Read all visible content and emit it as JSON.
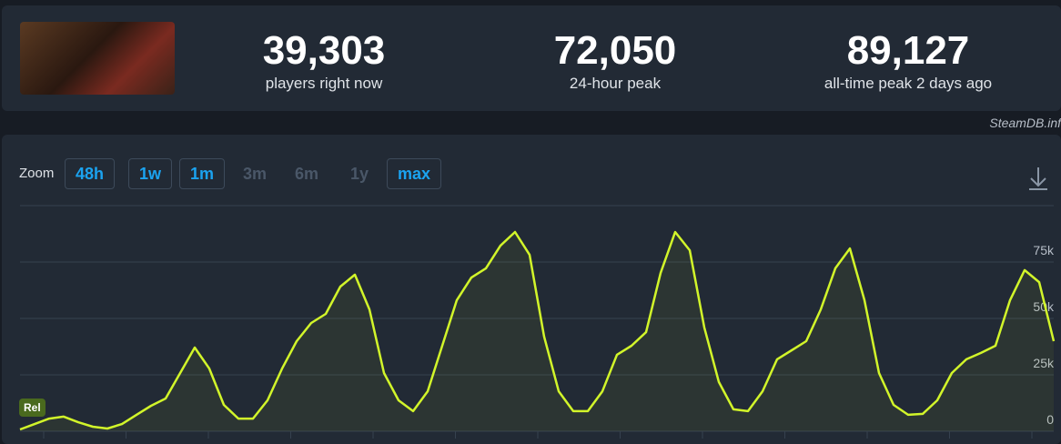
{
  "header": {
    "stats": [
      {
        "value": "39,303",
        "label": "players right now"
      },
      {
        "value": "72,050",
        "label": "24-hour peak"
      },
      {
        "value": "89,127",
        "label": "all-time peak 2 days ago"
      }
    ],
    "source": "SteamDB.inf"
  },
  "zoom": {
    "label": "Zoom",
    "buttons": [
      "48h",
      "1w",
      "1m",
      "3m",
      "6m",
      "1y",
      "max"
    ]
  },
  "chart_data": {
    "type": "line",
    "badge": "Rel",
    "series": [
      {
        "color": "#d2f52a",
        "values": [
          800,
          3200,
          5600,
          6500,
          4000,
          2000,
          1200,
          3200,
          7300,
          11300,
          14500,
          25800,
          37100,
          27800,
          11700,
          5600,
          5600,
          13700,
          27800,
          39900,
          48000,
          52000,
          64100,
          69400,
          54000,
          25800,
          13700,
          8900,
          17700,
          37900,
          58100,
          68100,
          72200,
          82300,
          88300,
          78200,
          41900,
          17700,
          8900,
          8900,
          17700,
          33900,
          37900,
          43900,
          70200,
          88300,
          80200,
          46000,
          21800,
          9700,
          8900,
          17700,
          31900,
          35900,
          39900,
          54000,
          72200,
          81000,
          58100,
          25800,
          11700,
          7300,
          7700,
          13700,
          25800,
          31900,
          34700,
          37900,
          58100,
          71400,
          66100,
          39900
        ]
      }
    ],
    "ylim": [
      0,
      100000
    ],
    "yticks": [
      0,
      {
        "value": 25000,
        "label": "25k"
      },
      {
        "value": 50000,
        "label": "50k"
      },
      {
        "value": 75000,
        "label": "75k"
      }
    ],
    "grid": true
  }
}
